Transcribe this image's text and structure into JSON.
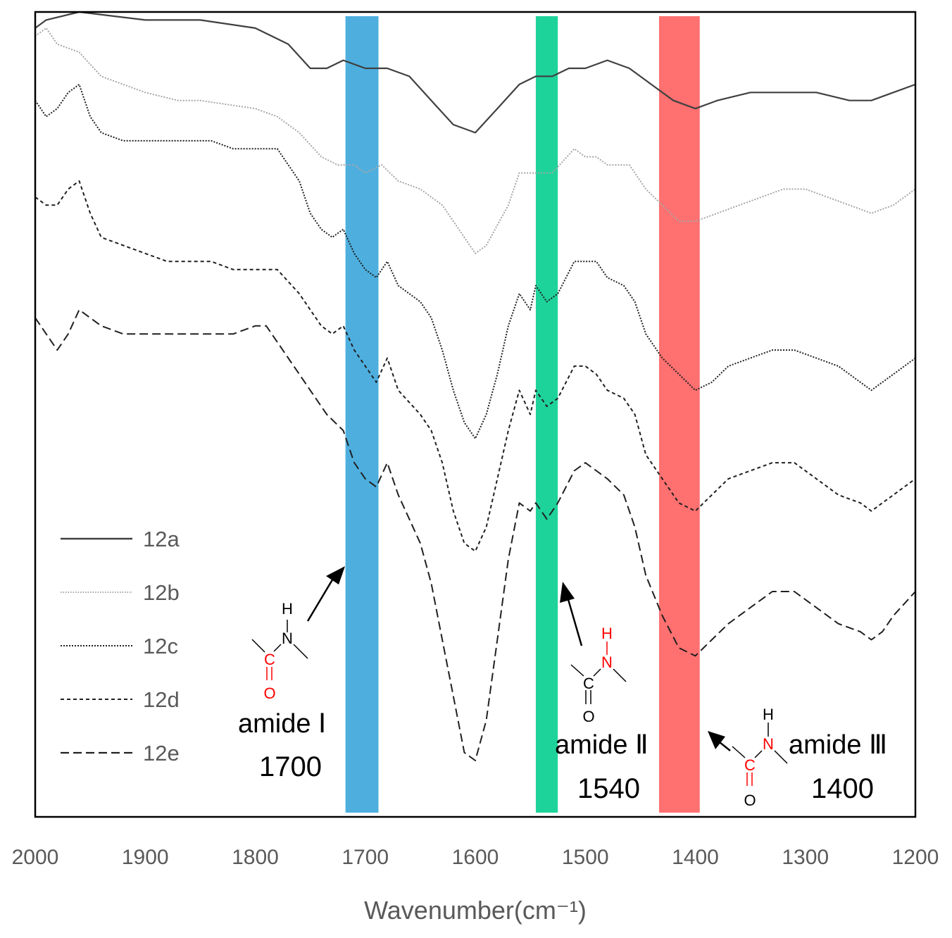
{
  "chart_data": {
    "type": "line",
    "title": "",
    "xlabel": "Wavenumber(cm⁻¹)",
    "ylabel": "",
    "xlim": [
      2000,
      1200
    ],
    "x_reversed": true,
    "x_ticks": [
      2000,
      1900,
      1800,
      1700,
      1600,
      1500,
      1400,
      1300,
      1200
    ],
    "y_units": "arbitrary (offset transmittance, 0 = top of frame, 100 = bottom of frame)",
    "ylim": [
      0,
      100
    ],
    "grid": false,
    "legend_position": "bottom-left",
    "series": [
      {
        "name": "12a",
        "style": "solid",
        "color": "#404040",
        "points": [
          [
            2000,
            2
          ],
          [
            1990,
            1
          ],
          [
            1960,
            0
          ],
          [
            1900,
            1
          ],
          [
            1850,
            1
          ],
          [
            1800,
            2
          ],
          [
            1770,
            4
          ],
          [
            1750,
            7
          ],
          [
            1735,
            7
          ],
          [
            1720,
            6
          ],
          [
            1700,
            7
          ],
          [
            1680,
            7
          ],
          [
            1660,
            8
          ],
          [
            1640,
            11
          ],
          [
            1620,
            14
          ],
          [
            1600,
            15
          ],
          [
            1580,
            12
          ],
          [
            1560,
            9
          ],
          [
            1545,
            8
          ],
          [
            1530,
            8
          ],
          [
            1515,
            7
          ],
          [
            1500,
            7
          ],
          [
            1480,
            6
          ],
          [
            1460,
            7
          ],
          [
            1440,
            9
          ],
          [
            1420,
            11
          ],
          [
            1400,
            12
          ],
          [
            1380,
            11
          ],
          [
            1350,
            10
          ],
          [
            1320,
            10
          ],
          [
            1290,
            10
          ],
          [
            1260,
            11
          ],
          [
            1240,
            11
          ],
          [
            1200,
            9
          ]
        ]
      },
      {
        "name": "12b",
        "style": "dotted",
        "color": "#a6a6a6",
        "points": [
          [
            2000,
            3
          ],
          [
            1990,
            2
          ],
          [
            1980,
            4
          ],
          [
            1960,
            5
          ],
          [
            1940,
            8
          ],
          [
            1900,
            10
          ],
          [
            1870,
            11
          ],
          [
            1850,
            11
          ],
          [
            1800,
            12
          ],
          [
            1780,
            13
          ],
          [
            1760,
            15
          ],
          [
            1740,
            18
          ],
          [
            1725,
            19
          ],
          [
            1710,
            19
          ],
          [
            1700,
            20
          ],
          [
            1685,
            19
          ],
          [
            1670,
            21
          ],
          [
            1650,
            22
          ],
          [
            1630,
            24
          ],
          [
            1610,
            28
          ],
          [
            1600,
            30
          ],
          [
            1590,
            29
          ],
          [
            1570,
            24
          ],
          [
            1560,
            20
          ],
          [
            1545,
            20
          ],
          [
            1530,
            20
          ],
          [
            1510,
            17
          ],
          [
            1500,
            18
          ],
          [
            1490,
            18
          ],
          [
            1480,
            19
          ],
          [
            1460,
            19
          ],
          [
            1445,
            22
          ],
          [
            1430,
            24
          ],
          [
            1415,
            26
          ],
          [
            1400,
            26
          ],
          [
            1380,
            25
          ],
          [
            1360,
            24
          ],
          [
            1340,
            23
          ],
          [
            1320,
            22
          ],
          [
            1300,
            22
          ],
          [
            1280,
            23
          ],
          [
            1260,
            24
          ],
          [
            1240,
            25
          ],
          [
            1220,
            24
          ],
          [
            1200,
            22
          ]
        ]
      },
      {
        "name": "12c",
        "style": "dotted",
        "color": "#202020",
        "points": [
          [
            2000,
            11
          ],
          [
            1990,
            13
          ],
          [
            1980,
            12
          ],
          [
            1970,
            10
          ],
          [
            1960,
            9
          ],
          [
            1950,
            13
          ],
          [
            1940,
            15
          ],
          [
            1920,
            16
          ],
          [
            1900,
            16
          ],
          [
            1880,
            16
          ],
          [
            1860,
            16
          ],
          [
            1840,
            16
          ],
          [
            1820,
            17
          ],
          [
            1800,
            17
          ],
          [
            1780,
            17
          ],
          [
            1760,
            21
          ],
          [
            1750,
            25
          ],
          [
            1740,
            27
          ],
          [
            1730,
            28
          ],
          [
            1720,
            27
          ],
          [
            1710,
            30
          ],
          [
            1700,
            32
          ],
          [
            1690,
            33
          ],
          [
            1680,
            31
          ],
          [
            1670,
            34
          ],
          [
            1650,
            36
          ],
          [
            1640,
            38
          ],
          [
            1630,
            42
          ],
          [
            1620,
            47
          ],
          [
            1610,
            51
          ],
          [
            1600,
            53
          ],
          [
            1590,
            50
          ],
          [
            1580,
            45
          ],
          [
            1570,
            39
          ],
          [
            1560,
            35
          ],
          [
            1550,
            37
          ],
          [
            1545,
            34
          ],
          [
            1535,
            36
          ],
          [
            1525,
            35
          ],
          [
            1510,
            31
          ],
          [
            1500,
            31
          ],
          [
            1490,
            31
          ],
          [
            1480,
            33
          ],
          [
            1465,
            34
          ],
          [
            1455,
            36
          ],
          [
            1445,
            40
          ],
          [
            1430,
            43
          ],
          [
            1415,
            45
          ],
          [
            1400,
            47
          ],
          [
            1385,
            46
          ],
          [
            1370,
            44
          ],
          [
            1350,
            43
          ],
          [
            1330,
            42
          ],
          [
            1310,
            42
          ],
          [
            1290,
            43
          ],
          [
            1270,
            44
          ],
          [
            1250,
            46
          ],
          [
            1240,
            47
          ],
          [
            1230,
            46
          ],
          [
            1220,
            45
          ],
          [
            1200,
            43
          ]
        ]
      },
      {
        "name": "12d",
        "style": "dashed",
        "color": "#202020",
        "points": [
          [
            2000,
            23
          ],
          [
            1990,
            24
          ],
          [
            1980,
            24
          ],
          [
            1970,
            22
          ],
          [
            1960,
            21
          ],
          [
            1950,
            25
          ],
          [
            1940,
            28
          ],
          [
            1920,
            29
          ],
          [
            1900,
            30
          ],
          [
            1880,
            31
          ],
          [
            1860,
            31
          ],
          [
            1840,
            31
          ],
          [
            1820,
            32
          ],
          [
            1800,
            32
          ],
          [
            1780,
            32
          ],
          [
            1760,
            35
          ],
          [
            1750,
            37
          ],
          [
            1740,
            39
          ],
          [
            1730,
            40
          ],
          [
            1720,
            39
          ],
          [
            1710,
            42
          ],
          [
            1700,
            44
          ],
          [
            1690,
            46
          ],
          [
            1680,
            43
          ],
          [
            1670,
            47
          ],
          [
            1650,
            50
          ],
          [
            1640,
            52
          ],
          [
            1630,
            56
          ],
          [
            1620,
            62
          ],
          [
            1610,
            66
          ],
          [
            1600,
            67
          ],
          [
            1590,
            64
          ],
          [
            1580,
            58
          ],
          [
            1570,
            52
          ],
          [
            1560,
            47
          ],
          [
            1550,
            50
          ],
          [
            1545,
            47
          ],
          [
            1535,
            49
          ],
          [
            1525,
            48
          ],
          [
            1510,
            44
          ],
          [
            1500,
            44
          ],
          [
            1490,
            45
          ],
          [
            1480,
            47
          ],
          [
            1465,
            48
          ],
          [
            1455,
            50
          ],
          [
            1445,
            55
          ],
          [
            1430,
            58
          ],
          [
            1415,
            61
          ],
          [
            1400,
            62
          ],
          [
            1385,
            60
          ],
          [
            1370,
            58
          ],
          [
            1350,
            57
          ],
          [
            1330,
            56
          ],
          [
            1310,
            56
          ],
          [
            1290,
            58
          ],
          [
            1270,
            60
          ],
          [
            1250,
            61
          ],
          [
            1240,
            62
          ],
          [
            1230,
            61
          ],
          [
            1220,
            60
          ],
          [
            1200,
            58
          ]
        ]
      },
      {
        "name": "12e",
        "style": "dashed-long",
        "color": "#202020",
        "points": [
          [
            2000,
            38
          ],
          [
            1990,
            40
          ],
          [
            1980,
            42
          ],
          [
            1970,
            40
          ],
          [
            1960,
            37
          ],
          [
            1940,
            39
          ],
          [
            1920,
            40
          ],
          [
            1900,
            40
          ],
          [
            1880,
            40
          ],
          [
            1860,
            40
          ],
          [
            1840,
            40
          ],
          [
            1820,
            40
          ],
          [
            1800,
            39
          ],
          [
            1790,
            39
          ],
          [
            1770,
            43
          ],
          [
            1750,
            47
          ],
          [
            1735,
            50
          ],
          [
            1720,
            52
          ],
          [
            1710,
            56
          ],
          [
            1700,
            58
          ],
          [
            1690,
            59
          ],
          [
            1680,
            56
          ],
          [
            1670,
            60
          ],
          [
            1660,
            63
          ],
          [
            1650,
            66
          ],
          [
            1640,
            71
          ],
          [
            1630,
            78
          ],
          [
            1620,
            85
          ],
          [
            1610,
            92
          ],
          [
            1600,
            93
          ],
          [
            1590,
            88
          ],
          [
            1580,
            78
          ],
          [
            1570,
            68
          ],
          [
            1560,
            61
          ],
          [
            1550,
            62
          ],
          [
            1545,
            61
          ],
          [
            1535,
            63
          ],
          [
            1525,
            61
          ],
          [
            1510,
            57
          ],
          [
            1500,
            56
          ],
          [
            1490,
            57
          ],
          [
            1480,
            58
          ],
          [
            1465,
            60
          ],
          [
            1455,
            64
          ],
          [
            1445,
            70
          ],
          [
            1430,
            75
          ],
          [
            1415,
            79
          ],
          [
            1400,
            80
          ],
          [
            1385,
            78
          ],
          [
            1370,
            76
          ],
          [
            1350,
            74
          ],
          [
            1330,
            72
          ],
          [
            1310,
            72
          ],
          [
            1290,
            74
          ],
          [
            1270,
            76
          ],
          [
            1250,
            77
          ],
          [
            1240,
            78
          ],
          [
            1230,
            77
          ],
          [
            1220,
            75
          ],
          [
            1200,
            72
          ]
        ]
      }
    ],
    "highlight_bands": [
      {
        "from": 1718,
        "to": 1688,
        "color": "#4eafdf"
      },
      {
        "from": 1545,
        "to": 1525,
        "color": "#1ed39a"
      },
      {
        "from": 1433,
        "to": 1396,
        "color": "#ff7070"
      }
    ],
    "annotations": [
      {
        "name": "amide Ⅰ",
        "wavenumber": "1700",
        "atoms": {
          "h": "H",
          "n": "N",
          "c": "C",
          "o": "O"
        }
      },
      {
        "name": "amide Ⅱ",
        "wavenumber": "1540",
        "atoms": {
          "h": "H",
          "n": "N",
          "c": "C",
          "o": "O"
        }
      },
      {
        "name": "amide Ⅲ",
        "wavenumber": "1400",
        "atoms": {
          "h": "H",
          "n": "N",
          "c": "C",
          "o": "O"
        }
      }
    ],
    "atom_color_highlight": "#ff0000",
    "atom_color_default": "#000000"
  }
}
